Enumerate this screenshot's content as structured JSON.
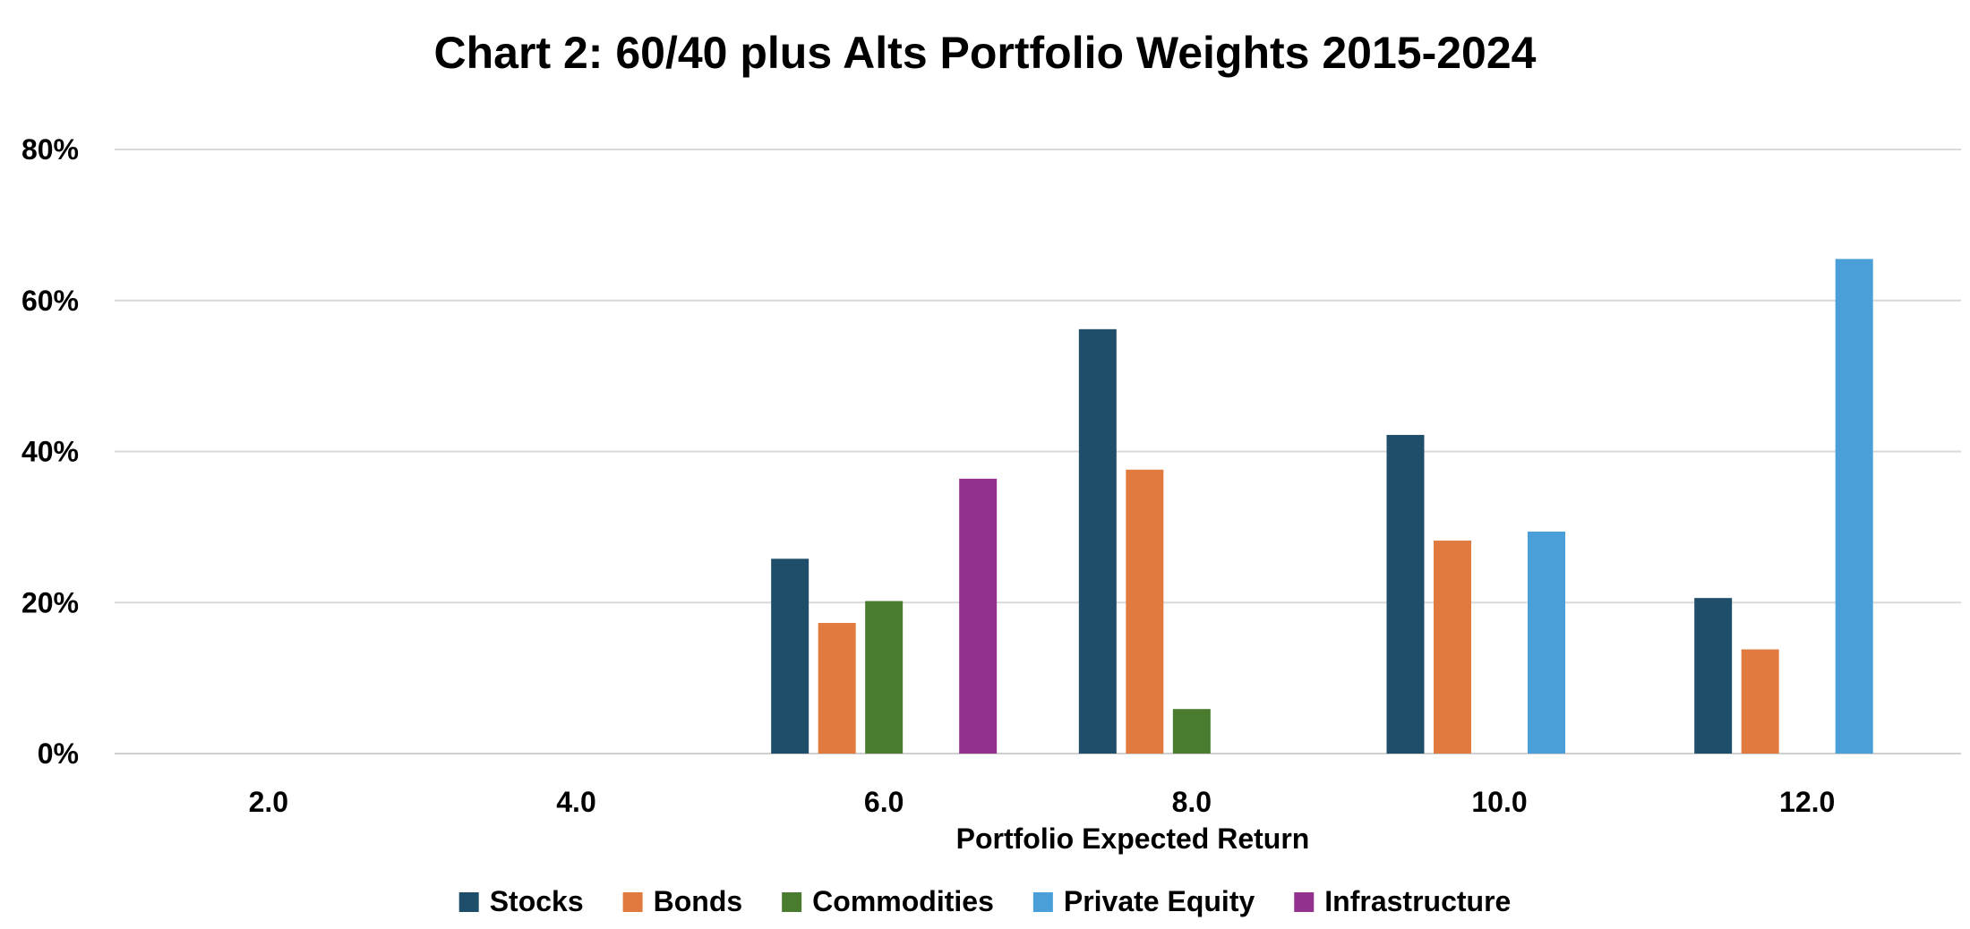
{
  "chart_data": {
    "type": "bar",
    "title": "Chart 2: 60/40 plus Alts Portfolio Weights 2015-2024",
    "xlabel": "Portfolio Expected Return",
    "ylabel": "",
    "categories": [
      "2.0",
      "4.0",
      "6.0",
      "8.0",
      "10.0",
      "12.0"
    ],
    "yticks": [
      "0%",
      "20%",
      "40%",
      "60%",
      "80%"
    ],
    "ylim": [
      0,
      80
    ],
    "grid": true,
    "legend_position": "bottom",
    "series": [
      {
        "name": "Stocks",
        "color": "#1f4e6a",
        "values": [
          0,
          0,
          25.8,
          56.2,
          42.2,
          20.6
        ]
      },
      {
        "name": "Bonds",
        "color": "#e07a3f",
        "values": [
          0,
          0,
          17.3,
          37.6,
          28.2,
          13.8
        ]
      },
      {
        "name": "Commodities",
        "color": "#4a7c2f",
        "values": [
          0,
          0,
          20.2,
          5.9,
          0,
          0
        ]
      },
      {
        "name": "Private Equity",
        "color": "#4a9fd8",
        "values": [
          0,
          0,
          0,
          0,
          29.4,
          65.5
        ]
      },
      {
        "name": "Infrastructure",
        "color": "#93328e",
        "values": [
          0,
          0,
          36.4,
          0,
          0,
          0
        ]
      }
    ]
  }
}
